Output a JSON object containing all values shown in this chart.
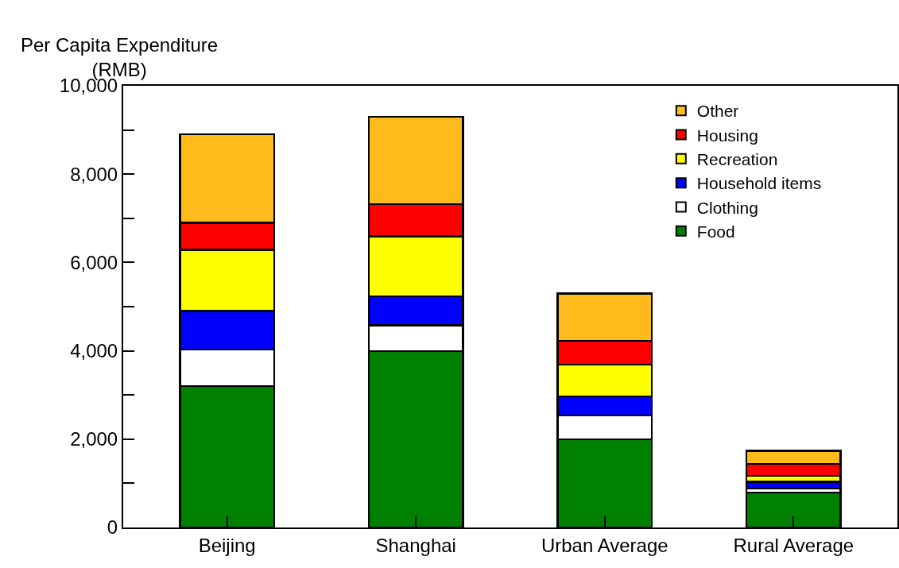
{
  "chart_data": {
    "type": "bar",
    "stacked": true,
    "ylabel": "Per Capita Expenditure\n(RMB)",
    "categories": [
      "Beijing",
      "Shanghai",
      "Urban Average",
      "Rural Average"
    ],
    "series": [
      {
        "name": "Food",
        "color": "#008000",
        "values": [
          3200,
          3990,
          2000,
          790
        ]
      },
      {
        "name": "Clothing",
        "color": "#ffffff",
        "values": [
          830,
          590,
          540,
          90
        ]
      },
      {
        "name": "Household items",
        "color": "#0000ff",
        "values": [
          870,
          650,
          430,
          150
        ]
      },
      {
        "name": "Recreation",
        "color": "#ffff00",
        "values": [
          1390,
          1360,
          720,
          140
        ]
      },
      {
        "name": "Housing",
        "color": "#ff0000",
        "values": [
          610,
          730,
          540,
          270
        ]
      },
      {
        "name": "Other",
        "color": "#ffbb1c",
        "values": [
          2000,
          1980,
          1070,
          300
        ]
      }
    ],
    "ylim": [
      0,
      10000
    ],
    "yticks": [
      0,
      {
        "value": 1000,
        "label": null
      },
      {
        "value": 2000,
        "label": "2,000"
      },
      {
        "value": 3000,
        "label": null
      },
      {
        "value": 4000,
        "label": "4,000"
      },
      {
        "value": 5000,
        "label": null
      },
      {
        "value": 6000,
        "label": "6,000"
      },
      {
        "value": 7000,
        "label": null
      },
      {
        "value": 8000,
        "label": "8,000"
      },
      {
        "value": 9000,
        "label": null
      },
      {
        "value": 10000,
        "label": "10,000"
      }
    ],
    "grid": false,
    "legend": "top right"
  }
}
